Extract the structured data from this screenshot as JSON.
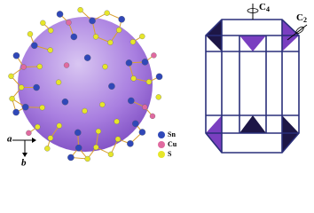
{
  "legend": {
    "items": [
      "Sn",
      "Cu",
      "S"
    ]
  },
  "axes": {
    "a": "a",
    "b": "b"
  },
  "symmetry": {
    "c4": {
      "symbol": "C",
      "subscript": "4"
    },
    "c2": {
      "symbol": "C",
      "subscript": "2"
    }
  }
}
